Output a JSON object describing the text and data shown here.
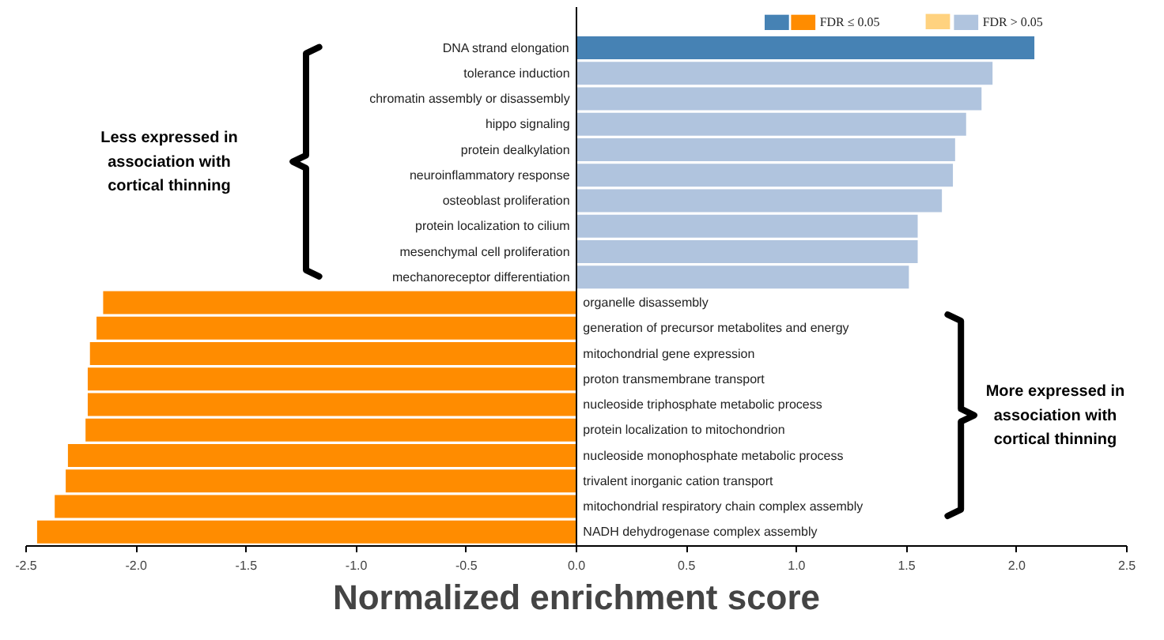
{
  "chart_data": {
    "type": "bar",
    "orientation": "horizontal",
    "xlabel": "Normalized enrichment score",
    "categories": [
      "DNA strand elongation",
      "tolerance induction",
      "chromatin assembly or disassembly",
      "hippo signaling",
      "protein dealkylation",
      "neuroinflammatory response",
      "osteoblast proliferation",
      "protein localization to cilium",
      "mesenchymal cell proliferation",
      "mechanoreceptor differentiation",
      "organelle disassembly",
      "generation of precursor metabolites and energy",
      "mitochondrial gene expression",
      "proton transmembrane transport",
      "nucleoside triphosphate metabolic process",
      "protein localization to mitochondrion",
      "nucleoside monophosphate metabolic process",
      "trivalent inorganic cation transport",
      "mitochondrial respiratory chain complex assembly",
      "NADH dehydrogenase complex assembly"
    ],
    "series": [
      {
        "name": "FDR ≤ 0.05",
        "values": [
          2.08,
          null,
          null,
          null,
          null,
          null,
          null,
          null,
          null,
          null,
          -2.15,
          -2.18,
          -2.21,
          -2.22,
          -2.22,
          -2.23,
          -2.31,
          -2.32,
          -2.37,
          -2.45
        ],
        "colors": [
          "#4682b4",
          "#4682b4",
          "#4682b4",
          "#4682b4",
          "#4682b4",
          "#4682b4",
          "#4682b4",
          "#4682b4",
          "#4682b4",
          "#4682b4",
          "#ff8c00",
          "#ff8c00",
          "#ff8c00",
          "#ff8c00",
          "#ff8c00",
          "#ff8c00",
          "#ff8c00",
          "#ff8c00",
          "#ff8c00",
          "#ff8c00"
        ]
      },
      {
        "name": "FDR > 0.05",
        "values": [
          null,
          1.89,
          1.84,
          1.77,
          1.72,
          1.71,
          1.66,
          1.55,
          1.55,
          1.51,
          null,
          null,
          null,
          null,
          null,
          null,
          null,
          null,
          null,
          null
        ],
        "colors": [
          "#b0c4de",
          "#b0c4de",
          "#b0c4de",
          "#b0c4de",
          "#b0c4de",
          "#b0c4de",
          "#b0c4de",
          "#b0c4de",
          "#b0c4de",
          "#b0c4de",
          "#ffd27f",
          "#ffd27f",
          "#ffd27f",
          "#ffd27f",
          "#ffd27f",
          "#ffd27f",
          "#ffd27f",
          "#ffd27f",
          "#ffd27f",
          "#ffd27f"
        ]
      }
    ],
    "xlim": [
      -2.5,
      2.5
    ],
    "xticks": [
      -2.5,
      {
        "value": -2,
        "label": "-2.0"
      },
      -1.5,
      {
        "value": -1,
        "label": "-1.0"
      },
      -0.5,
      {
        "value": 0,
        "label": "0.0"
      },
      0.5,
      {
        "value": 1,
        "label": "1.0"
      },
      1.5,
      {
        "value": 2,
        "label": "2.0"
      },
      2.5
    ],
    "annotations": [
      "Less expressed in association with cortical thinning",
      "More expressed in association with cortical thinning"
    ],
    "legend": "top right",
    "grid": false
  }
}
